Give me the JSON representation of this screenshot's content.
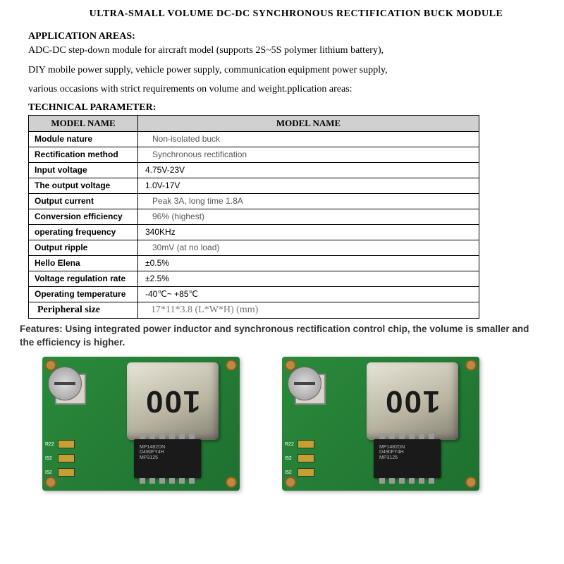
{
  "title": "ULTRA-SMALL VOLUME DC-DC SYNCHRONOUS RECTIFICATION BUCK MODULE",
  "section_app_head": "APPLICATION AREAS:",
  "app_line1": "ADC-DC step-down module for aircraft model (supports 2S~5S polymer lithium battery),",
  "app_line2": "DIY mobile power supply, vehicle power supply, communication equipment power supply,",
  "app_line3": "various occasions with strict requirements on volume and weight.pplication areas:",
  "section_tech_head": "TECHNICAL PARAMETER:",
  "table": {
    "header1": "MODEL NAME",
    "header2": "MODEL NAME",
    "rows": [
      {
        "label": "Module nature",
        "value": "Non-isolated buck",
        "cls": "value"
      },
      {
        "label": "Rectification method",
        "value": "Synchronous rectification",
        "cls": "value"
      },
      {
        "label": "Input voltage",
        "value": "4.75V-23V",
        "cls": "value-dark"
      },
      {
        "label": "The output voltage",
        "value": "1.0V-17V",
        "cls": "value-dark"
      },
      {
        "label": "Output current",
        "value": "Peak 3A, long time 1.8A",
        "cls": "value"
      },
      {
        "label": "Conversion efficiency",
        "value": "96% (highest)",
        "cls": "value"
      },
      {
        "label": "operating frequency",
        "value": "340KHz",
        "cls": "value-dark"
      },
      {
        "label": "Output ripple",
        "value": "30mV (at no load)",
        "cls": "value"
      },
      {
        "label": "Hello Elena",
        "value": "±0.5%",
        "cls": "value-dark"
      },
      {
        "label": "Voltage regulation rate",
        "value": "±2.5%",
        "cls": "value-dark"
      },
      {
        "label": "Operating temperature",
        "value": "-40℃~ +85℃",
        "cls": "value-dark"
      }
    ],
    "last": {
      "label": "Peripheral size",
      "value": "17*11*3.8 (L*W*H) (mm)"
    }
  },
  "features": "Features: Using integrated power inductor and synchronous rectification control chip, the volume is smaller and the efficiency is higher.",
  "board": {
    "inductor_mark": "100",
    "chip_text": "MP1482DN\nD490FY4H\nMP3125",
    "smd_labels": [
      "R22",
      "I52",
      "I52"
    ]
  }
}
